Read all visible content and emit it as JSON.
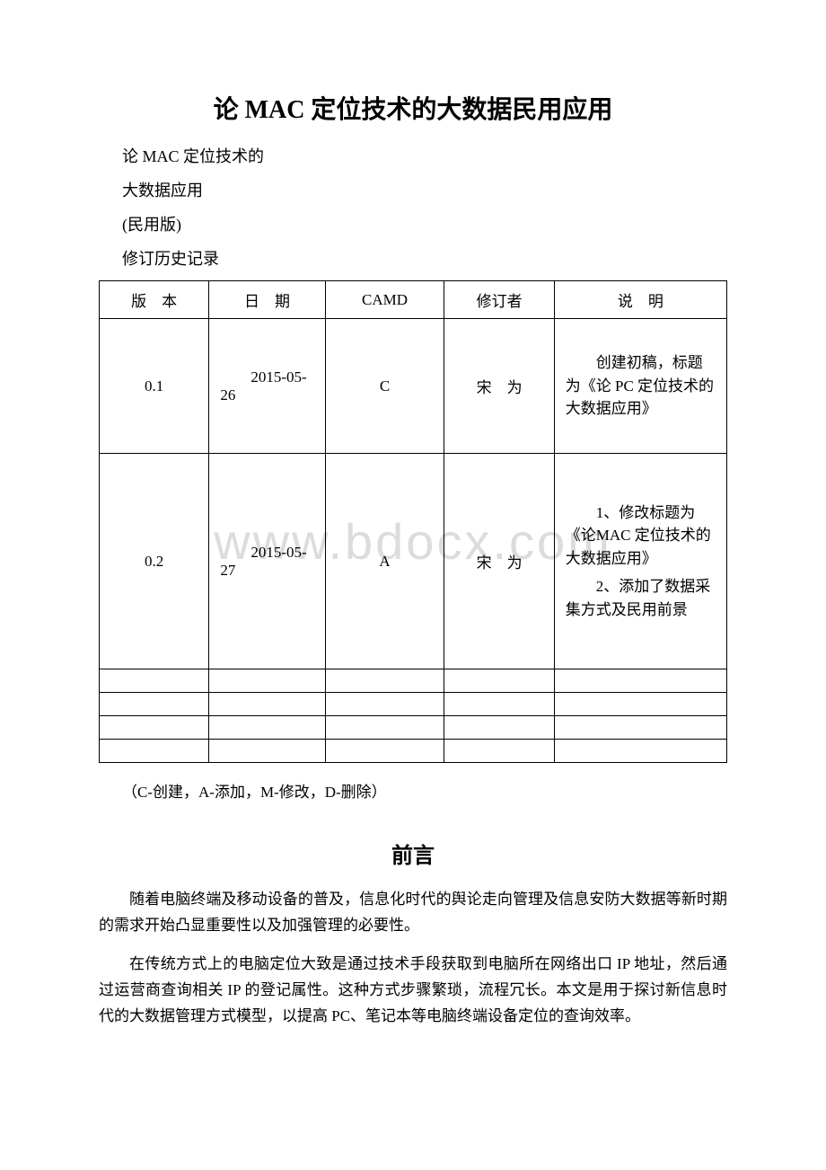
{
  "title": "论 MAC 定位技术的大数据民用应用",
  "subtitle_lines": [
    "论 MAC 定位技术的",
    "大数据应用",
    "(民用版)",
    "修订历史记录"
  ],
  "watermark_text": "www.bdocx.com",
  "table": {
    "headers": {
      "version": "版　本",
      "date": "日　期",
      "camd": "CAMD",
      "author": "修订者",
      "desc": "说　明"
    },
    "rows": [
      {
        "version": "0.1",
        "date": "2015-05-26",
        "camd": "C",
        "author": "宋　为",
        "desc_parts": [
          "创建初稿，标题为《论 PC 定位技术的大数据应用》"
        ]
      },
      {
        "version": "0.2",
        "date": "2015-05-27",
        "camd": "A",
        "author": "宋　为",
        "desc_parts": [
          "1、修改标题为《论MAC 定位技术的大数据应用》",
          "2、添加了数据采集方式及民用前景"
        ]
      }
    ],
    "empty_rows": 4
  },
  "legend_text": "（C-创建，A-添加，M-修改，D-删除）",
  "section_heading": "前言",
  "paragraphs": [
    "随着电脑终端及移动设备的普及，信息化时代的舆论走向管理及信息安防大数据等新时期的需求开始凸显重要性以及加强管理的必要性。",
    "在传统方式上的电脑定位大致是通过技术手段获取到电脑所在网络出口 IP 地址，然后通过运营商查询相关 IP 的登记属性。这种方式步骤繁琐，流程冗长。本文是用于探讨新信息时代的大数据管理方式模型，以提高 PC、笔记本等电脑终端设备定位的查询效率。"
  ],
  "colors": {
    "background": "#ffffff",
    "text": "#000000",
    "border": "#000000",
    "watermark": "#dcdcdc"
  },
  "typography": {
    "title_fontsize": 28,
    "body_fontsize": 17,
    "heading_fontsize": 24,
    "watermark_fontsize": 56,
    "font_family": "SimSun"
  }
}
